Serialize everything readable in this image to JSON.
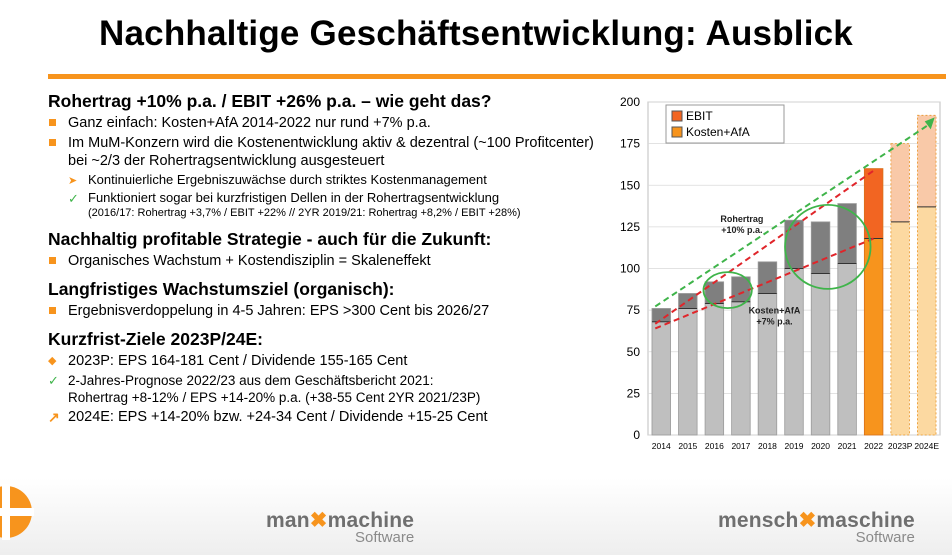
{
  "title": "Nachhaltige Geschäftsentwicklung: Ausblick",
  "sections": [
    {
      "heading": "Rohertrag +10% p.a. / EBIT +26% p.a. – wie geht das?",
      "items": [
        {
          "text": "Ganz einfach: Kosten+AfA 2014-2022 nur rund +7% p.a."
        },
        {
          "text": "Im MuM-Konzern wird die Kostenentwicklung aktiv & dezentral (~100 Profitcenter) bei ~2/3 der Rohertragsentwicklung ausgesteuert"
        }
      ],
      "subitems": [
        {
          "text": "Kontinuierliche Ergebniszuwächse durch striktes Kostenmanagement"
        },
        {
          "text": "Funktioniert sogar bei kurzfristigen Dellen in der Rohertragsentwicklung",
          "note": "(2016/17: Rohertrag +3,7% / EBIT +22% // 2YR 2019/21: Rohertrag +8,2% / EBIT +28%)"
        }
      ]
    },
    {
      "heading": "Nachhaltig profitable Strategie - auch für die Zukunft:",
      "items": [
        {
          "text": "Organisches Wachstum + Kostendisziplin = Skaleneffekt"
        }
      ]
    },
    {
      "heading": "Langfristiges Wachstumsziel (organisch):",
      "items": [
        {
          "text": "Ergebnisverdoppelung in 4-5 Jahren:  EPS >300 Cent bis 2026/27"
        }
      ]
    },
    {
      "heading": "Kurzfrist-Ziele 2023P/24E:",
      "items": [
        {
          "text": "2023P: EPS 164-181 Cent / Dividende 155-165 Cent"
        },
        {
          "text": "2-Jahres-Prognose 2022/23 aus dem Geschäftsbericht 2021:",
          "text2": "Rohertrag +8-12% / EPS +14-20% p.a. (+38-55 Cent 2YR 2021/23P)"
        },
        {
          "text": "2024E: EPS +14-20% bzw. +24-34 Cent / Dividende +15-25 Cent"
        }
      ]
    }
  ],
  "chart_data": {
    "type": "bar",
    "stacked": true,
    "categories": [
      "2014",
      "2015",
      "2016",
      "2017",
      "2018",
      "2019",
      "2020",
      "2021",
      "2022",
      "2023P",
      "2024E"
    ],
    "series": [
      {
        "name": "Kosten+AfA",
        "values": [
          68,
          76,
          79,
          80,
          85,
          100,
          97,
          103,
          118,
          128,
          137
        ]
      },
      {
        "name": "EBIT",
        "values": [
          8,
          9,
          13,
          15,
          19,
          29,
          31,
          36,
          42,
          47,
          55
        ]
      }
    ],
    "ylim": [
      0,
      200
    ],
    "yticks": [
      0,
      25,
      50,
      75,
      100,
      125,
      150,
      175,
      200
    ],
    "legend": "top-left",
    "annotations": [
      {
        "text": "Rohertrag",
        "text2": "+10% p.a."
      },
      {
        "text": "Kosten+AfA",
        "text2": "+7% p.a."
      }
    ],
    "colors": {
      "cost": "#bfbfbf",
      "ebit": "#7f7f7f",
      "ebit_2022": "#f26522",
      "cost_2022": "#f7941d",
      "cost_forecast": "#fcd9a1",
      "ebit_forecast": "#f9c9a8",
      "red": "#e0252a",
      "green": "#3fb44a",
      "grid": "#d9d9d9"
    }
  },
  "logos": [
    {
      "main1": "man",
      "mark": "✖",
      "main2": "machine",
      "sub": "Software"
    },
    {
      "main1": "mensch",
      "mark": "✖",
      "main2": "maschine",
      "sub": "Software"
    }
  ]
}
